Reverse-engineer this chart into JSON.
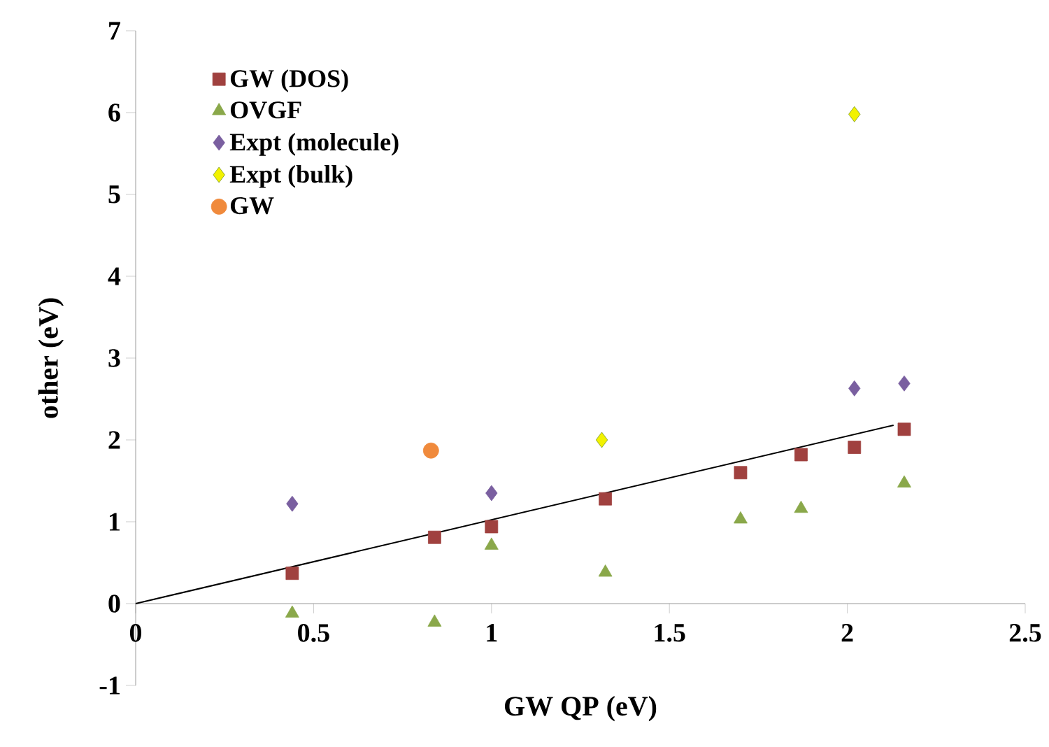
{
  "chart_data": {
    "type": "scatter",
    "xlabel": "GW QP (eV)",
    "ylabel": "other (eV)",
    "xlim": [
      0,
      2.5
    ],
    "xticks": [
      0,
      0.5,
      1,
      1.5,
      2,
      2.5
    ],
    "ylim": [
      -1,
      7
    ],
    "yticks": [
      -1,
      0,
      1,
      2,
      3,
      4,
      5,
      6,
      7
    ],
    "grid": false,
    "legend": "top left",
    "series": [
      {
        "name": "GW (DOS)",
        "color": "#a0413f",
        "marker": "square",
        "x": [
          0.44,
          0.84,
          1.0,
          1.32,
          1.7,
          1.87,
          2.02,
          2.16
        ],
        "values": [
          0.37,
          0.81,
          0.94,
          1.28,
          1.6,
          1.82,
          1.91,
          2.13
        ]
      },
      {
        "name": "OVGF",
        "color": "#8aa84a",
        "marker": "triangle",
        "x": [
          0.44,
          0.84,
          1.0,
          1.32,
          1.7,
          1.87,
          2.16
        ],
        "values": [
          -0.12,
          -0.23,
          0.71,
          0.38,
          1.03,
          1.16,
          1.47
        ]
      },
      {
        "name": "Expt (molecule)",
        "color": "#7a5fa0",
        "marker": "diamond",
        "x": [
          0.44,
          1.0,
          2.02,
          2.16
        ],
        "values": [
          1.22,
          1.35,
          2.63,
          2.69
        ]
      },
      {
        "name": "Expt (bulk)",
        "color": "#f2f200",
        "marker": "diamond",
        "x": [
          1.31,
          2.02
        ],
        "values": [
          2.0,
          5.98
        ]
      },
      {
        "name": "GW",
        "color": "#f08a3c",
        "marker": "circle",
        "x": [
          0.83
        ],
        "values": [
          1.87
        ]
      },
      {
        "type": "line",
        "color": "#000000",
        "marker": "none",
        "line_style": "solid",
        "x": [
          0,
          2.13
        ],
        "values": [
          0,
          2.18
        ]
      }
    ]
  }
}
